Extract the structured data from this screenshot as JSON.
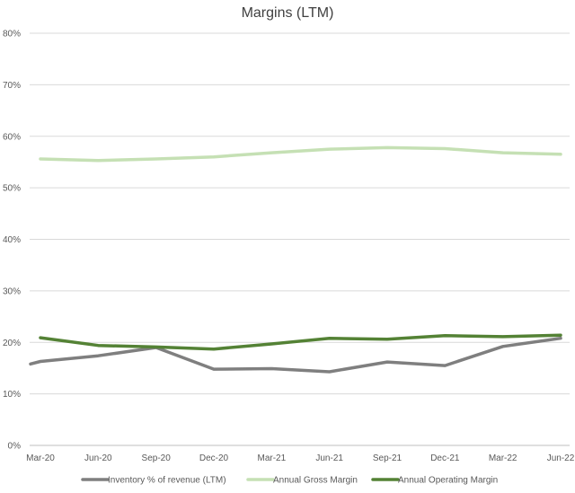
{
  "chart_data": {
    "type": "line",
    "title": "Margins (LTM)",
    "xlabel": "",
    "ylabel": "",
    "categories": [
      "Mar-20",
      "Jun-20",
      "Sep-20",
      "Dec-20",
      "Mar-21",
      "Jun-21",
      "Sep-21",
      "Dec-21",
      "Mar-22",
      "Jun-22"
    ],
    "ylim": [
      0,
      80
    ],
    "yticks": [
      0,
      10,
      20,
      30,
      40,
      50,
      60,
      70,
      80
    ],
    "ytick_labels": [
      "0%",
      "10%",
      "20%",
      "30%",
      "40%",
      "50%",
      "60%",
      "70%",
      "80%"
    ],
    "grid": true,
    "legend_position": "bottom",
    "series": [
      {
        "name": "Inventory % of revenue (LTM)",
        "color": "#7f7f7f",
        "values": [
          16.3,
          17.4,
          19.0,
          14.8,
          14.9,
          14.3,
          16.2,
          15.5,
          19.2,
          20.8
        ],
        "start_value": 15.8
      },
      {
        "name": "Annual Gross Margin",
        "color": "#c5e0b4",
        "values": [
          55.6,
          55.3,
          55.6,
          56.0,
          56.8,
          57.5,
          57.8,
          57.6,
          56.8,
          56.5
        ]
      },
      {
        "name": "Annual Operating Margin",
        "color": "#548235",
        "values": [
          20.9,
          19.4,
          19.1,
          18.7,
          19.7,
          20.8,
          20.6,
          21.3,
          21.1,
          21.4
        ]
      }
    ]
  }
}
